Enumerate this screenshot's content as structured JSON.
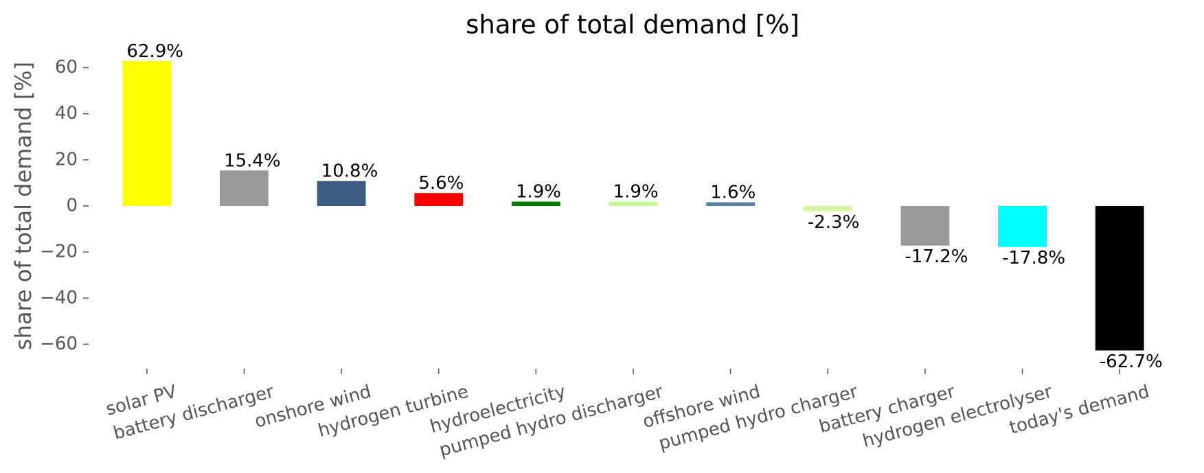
{
  "chart_data": {
    "type": "bar",
    "title": "share of total demand [%]",
    "y_label": "share of total demand [%]",
    "categories": [
      "solar PV",
      "battery discharger",
      "onshore wind",
      "hydrogen turbine",
      "hydroelectricity",
      "pumped hydro discharger",
      "offshore wind",
      "pumped hydro charger",
      "battery charger",
      "hydrogen electrolyser",
      "today's demand"
    ],
    "values": [
      62.9,
      15.4,
      10.8,
      5.6,
      1.9,
      1.9,
      1.6,
      -2.3,
      -17.2,
      -17.8,
      -62.7
    ],
    "value_labels": [
      "62.9%",
      "15.4%",
      "10.8%",
      "5.6%",
      "1.9%",
      "1.9%",
      "1.6%",
      "-2.3%",
      "-17.2%",
      "-17.8%",
      "-62.7%"
    ],
    "colors": [
      "#ffff00",
      "#999999",
      "#3b5e80",
      "#ff0000",
      "#007a00",
      "#ccf5a0",
      "#5b7fa3",
      "#d4f5a3",
      "#999999",
      "#00ffff",
      "#000000"
    ],
    "ylim": [
      -70,
      70
    ],
    "yticks": [
      {
        "value": -60,
        "label": "−60"
      },
      {
        "value": -40,
        "label": "−40"
      },
      {
        "value": -20,
        "label": "−20"
      },
      0,
      20,
      40,
      60
    ]
  }
}
